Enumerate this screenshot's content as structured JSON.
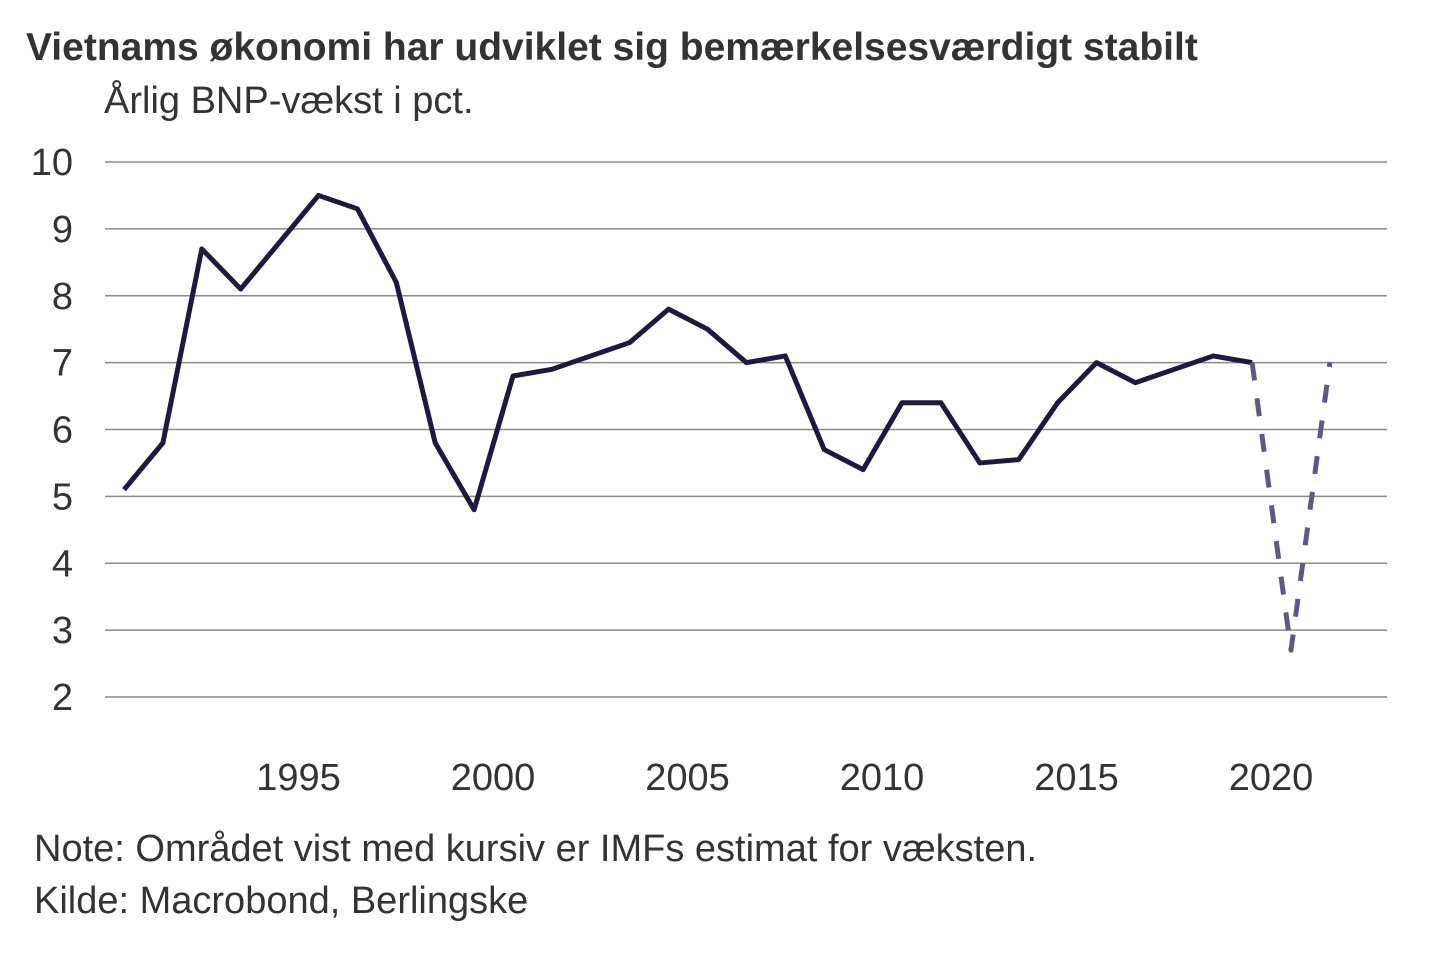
{
  "title": "Vietnams økonomi har udviklet sig bemærkelsesværdigt stabilt",
  "subtitle": "Årlig BNP-vækst i pct.",
  "note": "Note: Området vist med kursiv er IMFs estimat for væksten.",
  "source": "Kilde: Macrobond, Berlingske",
  "chart_data": {
    "type": "line",
    "title": "Vietnams økonomi har udviklet sig bemærkelsesværdigt stabilt",
    "ylabel": "Årlig BNP-vækst i pct.",
    "xlabel": "",
    "ylim": [
      2,
      10
    ],
    "xlim": [
      1990,
      2021
    ],
    "grid": "horizontal",
    "y_ticks": [
      "2",
      "3",
      "4",
      "5",
      "6",
      "7",
      "8",
      "9",
      "10"
    ],
    "x_ticks": [
      "1995",
      "2000",
      "2005",
      "2010",
      "2015",
      "2020"
    ],
    "colors": {
      "actual": "#1c1a40",
      "estimate": "#5c5a84",
      "grid": "#8a8a8a"
    },
    "series": [
      {
        "style": "solid",
        "x": [
          1990,
          1991,
          1992,
          1993,
          1994,
          1995,
          1996,
          1997,
          1998,
          1999,
          2000,
          2001,
          2002,
          2003,
          2004,
          2005,
          2006,
          2007,
          2008,
          2009,
          2010,
          2011,
          2012,
          2013,
          2014,
          2015,
          2016,
          2017,
          2018,
          2019
        ],
        "y": [
          5.1,
          5.8,
          8.7,
          8.1,
          8.8,
          9.5,
          9.3,
          8.2,
          5.8,
          4.8,
          6.8,
          6.9,
          7.1,
          7.3,
          7.8,
          7.5,
          7.0,
          7.1,
          5.7,
          5.4,
          6.4,
          6.4,
          5.5,
          5.55,
          6.4,
          7.0,
          6.7,
          6.9,
          7.1,
          7.0
        ]
      },
      {
        "style": "dashed",
        "x": [
          2019,
          2020,
          2021
        ],
        "y": [
          7.0,
          2.7,
          7.0
        ]
      }
    ]
  }
}
